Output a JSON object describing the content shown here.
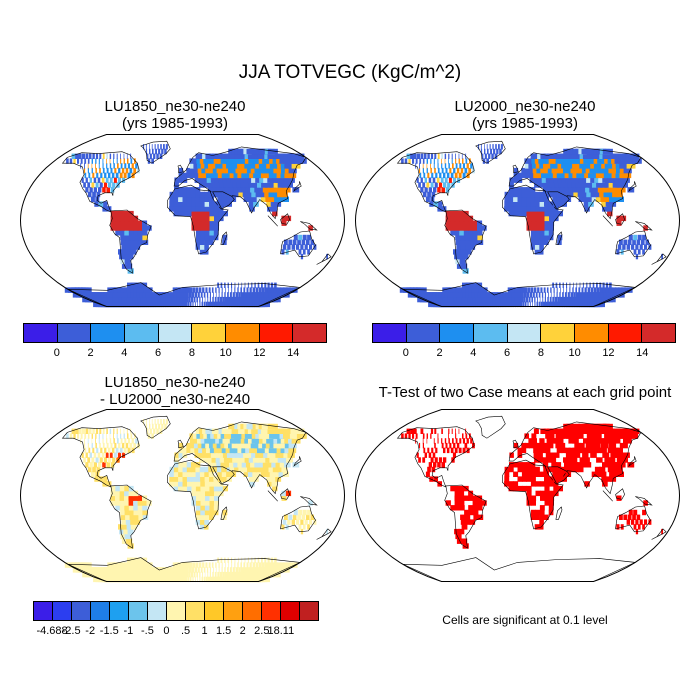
{
  "title": "JJA TOTVEGC (KgC/m^2)",
  "panels": [
    {
      "id": "p1",
      "title_line1": "LU1850_ne30-ne240",
      "title_line2": "(yrs 1985-1993)"
    },
    {
      "id": "p2",
      "title_line1": "LU2000_ne30-ne240",
      "title_line2": "(yrs 1985-1993)"
    },
    {
      "id": "p3",
      "title_line1": "LU1850_ne30-ne240",
      "title_line2": "- LU2000_ne30-ne240"
    },
    {
      "id": "p4",
      "title_line1": "T-Test of two Case means at each grid point",
      "title_line2": ""
    }
  ],
  "colorbar_main": {
    "colors": [
      "#3b1ee8",
      "#3d5ed8",
      "#1e8ff0",
      "#5cbcf0",
      "#c4e6f4",
      "#ffd23a",
      "#ff8c00",
      "#ff1a00",
      "#d42a2a"
    ],
    "labels": [
      "0",
      "2",
      "4",
      "6",
      "8",
      "10",
      "12",
      "14"
    ]
  },
  "colorbar_diff": {
    "colors": [
      "#3b1ee8",
      "#2c3ef0",
      "#3d5ed8",
      "#1e7ee8",
      "#1ea0f0",
      "#6cc4ec",
      "#c4e6f4",
      "#fff5b0",
      "#ffe066",
      "#ffc828",
      "#ffa010",
      "#ff6e00",
      "#ff3000",
      "#e00000",
      "#c02020"
    ],
    "labels": [
      "-4.688",
      "-2.5",
      "-2",
      "-1.5",
      "-1",
      "-.5",
      "0",
      ".5",
      "1",
      "1.5",
      "2",
      "2.5",
      "18.11"
    ]
  },
  "significance_note": "Cells are significant at 0.1 level"
}
